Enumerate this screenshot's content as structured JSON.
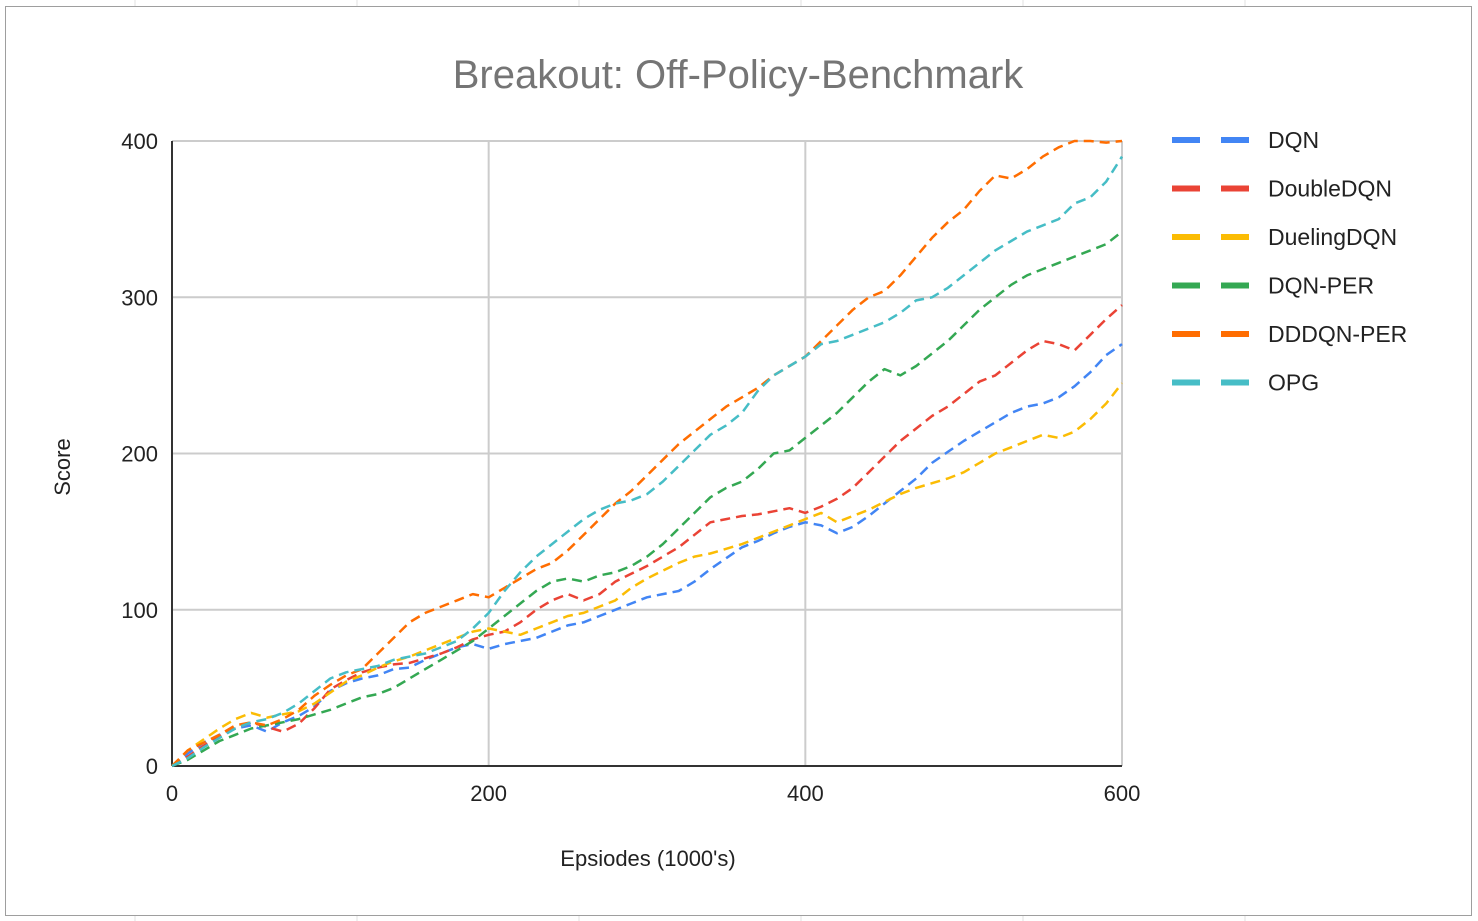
{
  "chart_data": {
    "type": "line",
    "title": "Breakout: Off-Policy-Benchmark",
    "xlabel": "Epsiodes (1000's)",
    "ylabel": "Score",
    "xlim": [
      0,
      600
    ],
    "ylim": [
      0,
      400
    ],
    "xticks": [
      0,
      200,
      400,
      600
    ],
    "yticks": [
      0,
      100,
      200,
      300,
      400
    ],
    "grid": true,
    "legend_position": "right",
    "line_style": "dashed",
    "series": [
      {
        "name": "DQN",
        "color": "#4285f4",
        "x": [
          0,
          10,
          20,
          30,
          40,
          50,
          60,
          70,
          80,
          90,
          100,
          110,
          120,
          130,
          140,
          150,
          160,
          170,
          180,
          190,
          200,
          210,
          220,
          230,
          240,
          250,
          260,
          270,
          280,
          290,
          300,
          310,
          320,
          330,
          340,
          350,
          360,
          370,
          380,
          390,
          400,
          410,
          420,
          430,
          440,
          450,
          460,
          470,
          480,
          490,
          500,
          510,
          520,
          530,
          540,
          550,
          560,
          570,
          580,
          590,
          600
        ],
        "values": [
          0,
          8,
          15,
          20,
          24,
          26,
          22,
          28,
          32,
          38,
          48,
          53,
          56,
          58,
          62,
          63,
          68,
          72,
          76,
          78,
          75,
          78,
          80,
          82,
          86,
          90,
          92,
          96,
          100,
          104,
          108,
          110,
          112,
          118,
          126,
          133,
          140,
          144,
          149,
          153,
          156,
          154,
          149,
          153,
          160,
          168,
          176,
          184,
          194,
          201,
          208,
          214,
          220,
          226,
          230,
          232,
          236,
          243,
          252,
          263,
          270
        ]
      },
      {
        "name": "DoubleDQN",
        "color": "#ea4335",
        "x": [
          0,
          10,
          20,
          30,
          40,
          50,
          60,
          70,
          80,
          90,
          100,
          110,
          120,
          130,
          140,
          150,
          160,
          170,
          180,
          190,
          200,
          210,
          220,
          230,
          240,
          250,
          260,
          270,
          280,
          290,
          300,
          310,
          320,
          330,
          340,
          350,
          360,
          370,
          380,
          390,
          400,
          410,
          420,
          430,
          440,
          450,
          460,
          470,
          480,
          490,
          500,
          510,
          520,
          530,
          540,
          550,
          560,
          570,
          580,
          590,
          600
        ],
        "values": [
          0,
          6,
          13,
          19,
          24,
          28,
          25,
          22,
          27,
          37,
          49,
          55,
          60,
          63,
          65,
          66,
          69,
          72,
          76,
          81,
          84,
          86,
          92,
          100,
          106,
          110,
          106,
          110,
          118,
          123,
          128,
          134,
          140,
          148,
          156,
          158,
          160,
          161,
          163,
          165,
          162,
          166,
          171,
          178,
          188,
          198,
          208,
          216,
          224,
          230,
          238,
          246,
          250,
          258,
          266,
          272,
          270,
          266,
          276,
          286,
          295
        ]
      },
      {
        "name": "DuelingDQN",
        "color": "#fbbc04",
        "x": [
          0,
          10,
          20,
          30,
          40,
          50,
          60,
          70,
          80,
          90,
          100,
          110,
          120,
          130,
          140,
          150,
          160,
          170,
          180,
          190,
          200,
          210,
          220,
          230,
          240,
          250,
          260,
          270,
          280,
          290,
          300,
          310,
          320,
          330,
          340,
          350,
          360,
          370,
          380,
          390,
          400,
          410,
          420,
          430,
          440,
          450,
          460,
          470,
          480,
          490,
          500,
          510,
          520,
          530,
          540,
          550,
          560,
          570,
          580,
          590,
          600
        ],
        "values": [
          0,
          10,
          17,
          24,
          30,
          34,
          31,
          33,
          35,
          40,
          47,
          54,
          58,
          63,
          67,
          70,
          74,
          78,
          82,
          86,
          88,
          86,
          84,
          88,
          92,
          96,
          98,
          102,
          106,
          114,
          120,
          125,
          130,
          134,
          136,
          139,
          142,
          146,
          150,
          154,
          158,
          162,
          156,
          160,
          164,
          169,
          174,
          178,
          181,
          184,
          188,
          194,
          200,
          204,
          208,
          212,
          210,
          214,
          222,
          232,
          245
        ]
      },
      {
        "name": "DQN-PER",
        "color": "#34a853",
        "x": [
          0,
          10,
          20,
          30,
          40,
          50,
          60,
          70,
          80,
          90,
          100,
          110,
          120,
          130,
          140,
          150,
          160,
          170,
          180,
          190,
          200,
          210,
          220,
          230,
          240,
          250,
          260,
          270,
          280,
          290,
          300,
          310,
          320,
          330,
          340,
          350,
          360,
          370,
          380,
          390,
          400,
          410,
          420,
          430,
          440,
          450,
          460,
          470,
          480,
          490,
          500,
          510,
          520,
          530,
          540,
          550,
          560,
          570,
          580,
          590,
          600
        ],
        "values": [
          0,
          4,
          10,
          16,
          20,
          24,
          26,
          28,
          30,
          33,
          36,
          40,
          44,
          46,
          50,
          56,
          62,
          68,
          74,
          80,
          88,
          96,
          104,
          112,
          118,
          120,
          118,
          122,
          124,
          128,
          134,
          142,
          152,
          162,
          172,
          178,
          182,
          190,
          200,
          202,
          210,
          218,
          226,
          236,
          246,
          254,
          250,
          256,
          264,
          272,
          282,
          292,
          300,
          308,
          314,
          318,
          322,
          326,
          330,
          334,
          342
        ]
      },
      {
        "name": "DDDQN-PER",
        "color": "#ff6d01",
        "x": [
          0,
          10,
          20,
          30,
          40,
          50,
          60,
          70,
          80,
          90,
          100,
          110,
          120,
          130,
          140,
          150,
          160,
          170,
          180,
          190,
          200,
          210,
          220,
          230,
          240,
          250,
          260,
          270,
          280,
          290,
          300,
          310,
          320,
          330,
          340,
          350,
          360,
          370,
          380,
          390,
          400,
          410,
          420,
          430,
          440,
          450,
          460,
          470,
          480,
          490,
          500,
          510,
          520,
          530,
          540,
          550,
          560,
          570,
          580,
          590,
          600
        ],
        "values": [
          0,
          10,
          15,
          20,
          26,
          28,
          26,
          30,
          36,
          45,
          52,
          58,
          62,
          72,
          82,
          92,
          98,
          102,
          106,
          110,
          108,
          114,
          120,
          126,
          130,
          138,
          148,
          158,
          168,
          176,
          186,
          196,
          206,
          214,
          222,
          230,
          236,
          242,
          250,
          256,
          262,
          272,
          282,
          292,
          300,
          304,
          314,
          326,
          338,
          348,
          356,
          368,
          378,
          376,
          382,
          390,
          396,
          400,
          400,
          399,
          400
        ]
      },
      {
        "name": "OPG",
        "color": "#46bdc6",
        "x": [
          0,
          10,
          20,
          30,
          40,
          50,
          60,
          70,
          80,
          90,
          100,
          110,
          120,
          130,
          140,
          150,
          160,
          170,
          180,
          190,
          200,
          210,
          220,
          230,
          240,
          250,
          260,
          270,
          280,
          290,
          300,
          310,
          320,
          330,
          340,
          350,
          360,
          370,
          380,
          390,
          400,
          410,
          420,
          430,
          440,
          450,
          460,
          470,
          480,
          490,
          500,
          510,
          520,
          530,
          540,
          550,
          560,
          570,
          580,
          590,
          600
        ],
        "values": [
          0,
          5,
          12,
          18,
          24,
          28,
          30,
          34,
          40,
          48,
          56,
          60,
          62,
          64,
          68,
          70,
          72,
          76,
          80,
          88,
          98,
          112,
          124,
          134,
          142,
          150,
          158,
          164,
          168,
          170,
          174,
          182,
          192,
          202,
          212,
          218,
          226,
          240,
          250,
          256,
          262,
          270,
          272,
          276,
          280,
          284,
          290,
          298,
          300,
          306,
          314,
          322,
          330,
          336,
          342,
          346,
          350,
          360,
          364,
          374,
          390
        ]
      }
    ]
  }
}
